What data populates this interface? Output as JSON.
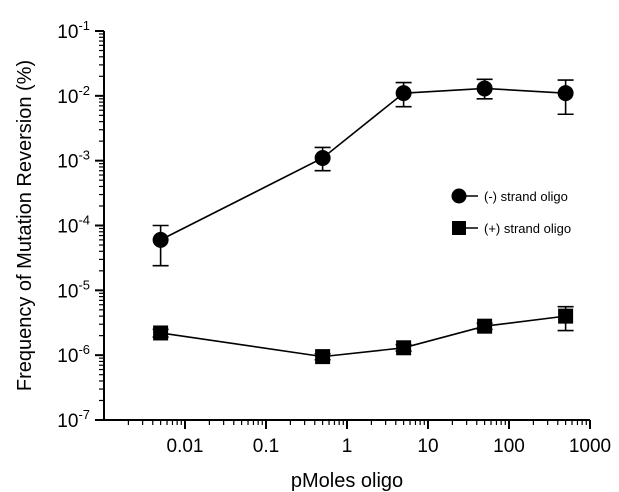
{
  "chart_data": {
    "type": "scatter",
    "title": "",
    "xlabel": "pMoles oligo",
    "ylabel": "Frequency of Mutation Reversion (%)",
    "xscale": "log",
    "yscale": "log",
    "xlim": [
      0.001,
      1000
    ],
    "ylim": [
      1e-07,
      0.1
    ],
    "x_ticks": [
      {
        "value": 0.01,
        "label": "0.01"
      },
      {
        "value": 0.1,
        "label": "0.1"
      },
      {
        "value": 1,
        "label": "1"
      },
      {
        "value": 10,
        "label": "10"
      },
      {
        "value": 100,
        "label": "100"
      },
      {
        "value": 1000,
        "label": "1000"
      }
    ],
    "y_ticks": [
      {
        "value": 1e-07,
        "base": "10",
        "exp": "-7"
      },
      {
        "value": 1e-06,
        "base": "10",
        "exp": "-6"
      },
      {
        "value": 1e-05,
        "base": "10",
        "exp": "-5"
      },
      {
        "value": 0.0001,
        "base": "10",
        "exp": "-4"
      },
      {
        "value": 0.001,
        "base": "10",
        "exp": "-3"
      },
      {
        "value": 0.01,
        "base": "10",
        "exp": "-2"
      },
      {
        "value": 0.1,
        "base": "10",
        "exp": "-1"
      }
    ],
    "grid": false,
    "legend_position": "right",
    "series": [
      {
        "name": "(-) strand oligo",
        "marker": "circle",
        "color": "#000000",
        "points": [
          {
            "x": 0.005,
            "y": 6e-05,
            "err_low": 2.4e-05,
            "err_high": 0.0001
          },
          {
            "x": 0.5,
            "y": 0.0011,
            "err_low": 0.0007,
            "err_high": 0.0016
          },
          {
            "x": 5,
            "y": 0.011,
            "err_low": 0.0068,
            "err_high": 0.016
          },
          {
            "x": 50,
            "y": 0.013,
            "err_low": 0.009,
            "err_high": 0.018
          },
          {
            "x": 500,
            "y": 0.011,
            "err_low": 0.0052,
            "err_high": 0.0175
          }
        ]
      },
      {
        "name": "(+) strand oligo",
        "marker": "square",
        "color": "#000000",
        "points": [
          {
            "x": 0.005,
            "y": 2.2e-06,
            "err_low": 1.9e-06,
            "err_high": 2.5e-06
          },
          {
            "x": 0.5,
            "y": 9.5e-07,
            "err_low": 8.5e-07,
            "err_high": 1.05e-06
          },
          {
            "x": 5,
            "y": 1.3e-06,
            "err_low": 1.15e-06,
            "err_high": 1.45e-06
          },
          {
            "x": 50,
            "y": 2.8e-06,
            "err_low": 2.5e-06,
            "err_high": 3.1e-06
          },
          {
            "x": 500,
            "y": 4e-06,
            "err_low": 2.4e-06,
            "err_high": 5.6e-06
          }
        ]
      }
    ]
  }
}
